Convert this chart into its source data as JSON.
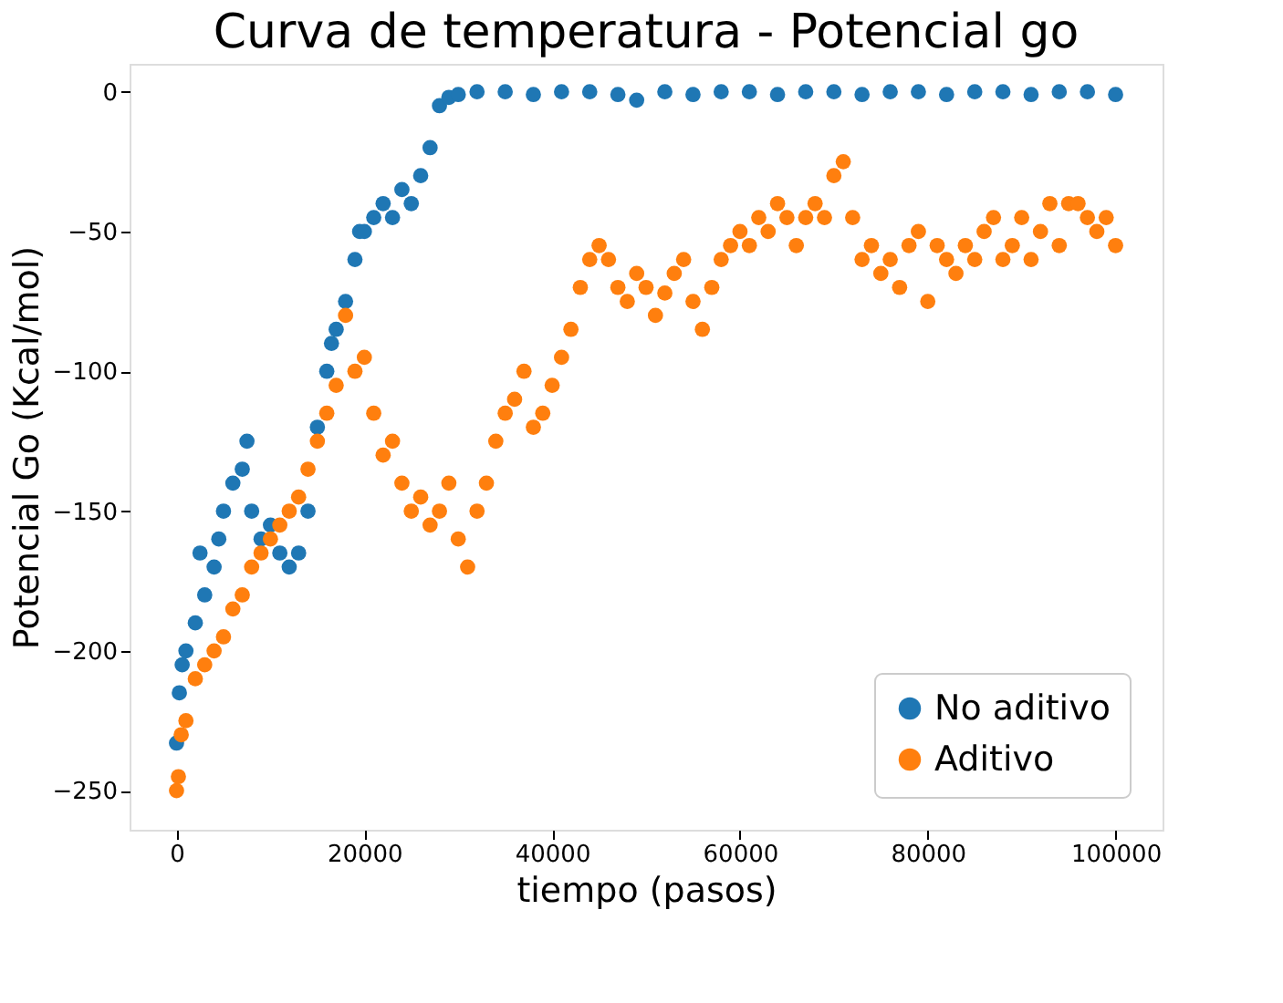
{
  "chart_data": {
    "type": "scatter",
    "title": "Curva de temperatura - Potencial go",
    "xlabel": "tiempo (pasos)",
    "ylabel": "Potencial Go (Kcal/mol)",
    "xlim": [
      -5000,
      105000
    ],
    "ylim": [
      -264,
      10
    ],
    "xticks": [
      0,
      20000,
      40000,
      60000,
      80000,
      100000
    ],
    "yticks": [
      -250,
      -200,
      -150,
      -100,
      -50,
      0
    ],
    "grid": false,
    "legend": "bottom right",
    "marker": "circle",
    "series": [
      {
        "name": "No aditivo",
        "color": "#1f77b4",
        "x": [
          0,
          300,
          600,
          1000,
          2000,
          2500,
          3000,
          4000,
          4500,
          5000,
          6000,
          7000,
          7500,
          8000,
          9000,
          10000,
          11000,
          12000,
          13000,
          14000,
          15000,
          16000,
          16500,
          17000,
          18000,
          19000,
          19500,
          20000,
          21000,
          22000,
          23000,
          24000,
          25000,
          26000,
          27000,
          28000,
          29000,
          30000,
          32000,
          35000,
          38000,
          41000,
          44000,
          47000,
          49000,
          52000,
          55000,
          58000,
          61000,
          64000,
          67000,
          70000,
          73000,
          76000,
          79000,
          82000,
          85000,
          88000,
          91000,
          94000,
          97000,
          100000
        ],
        "values": [
          -233,
          -215,
          -205,
          -200,
          -190,
          -165,
          -180,
          -170,
          -160,
          -150,
          -140,
          -135,
          -125,
          -150,
          -160,
          -155,
          -165,
          -170,
          -165,
          -150,
          -120,
          -100,
          -90,
          -85,
          -75,
          -60,
          -50,
          -50,
          -45,
          -40,
          -45,
          -35,
          -40,
          -30,
          -20,
          -5,
          -2,
          -1,
          0,
          0,
          -1,
          0,
          0,
          -1,
          -3,
          0,
          -1,
          0,
          0,
          -1,
          0,
          0,
          -1,
          0,
          0,
          -1,
          0,
          0,
          -1,
          0,
          0,
          -1
        ]
      },
      {
        "name": "Aditivo",
        "color": "#ff7f0e",
        "x": [
          0,
          200,
          500,
          1000,
          2000,
          3000,
          4000,
          5000,
          6000,
          7000,
          8000,
          9000,
          10000,
          11000,
          12000,
          13000,
          14000,
          15000,
          16000,
          17000,
          18000,
          19000,
          20000,
          21000,
          22000,
          23000,
          24000,
          25000,
          26000,
          27000,
          28000,
          29000,
          30000,
          31000,
          32000,
          33000,
          34000,
          35000,
          36000,
          37000,
          38000,
          39000,
          40000,
          41000,
          42000,
          43000,
          44000,
          45000,
          46000,
          47000,
          48000,
          49000,
          50000,
          51000,
          52000,
          53000,
          54000,
          55000,
          56000,
          57000,
          58000,
          59000,
          60000,
          61000,
          62000,
          63000,
          64000,
          65000,
          66000,
          67000,
          68000,
          69000,
          70000,
          71000,
          72000,
          73000,
          74000,
          75000,
          76000,
          77000,
          78000,
          79000,
          80000,
          81000,
          82000,
          83000,
          84000,
          85000,
          86000,
          87000,
          88000,
          89000,
          90000,
          91000,
          92000,
          93000,
          94000,
          95000,
          96000,
          97000,
          98000,
          99000,
          100000
        ],
        "values": [
          -250,
          -245,
          -230,
          -225,
          -210,
          -205,
          -200,
          -195,
          -185,
          -180,
          -170,
          -165,
          -160,
          -155,
          -150,
          -145,
          -135,
          -125,
          -115,
          -105,
          -80,
          -100,
          -95,
          -115,
          -130,
          -125,
          -140,
          -150,
          -145,
          -155,
          -150,
          -140,
          -160,
          -170,
          -150,
          -140,
          -125,
          -115,
          -110,
          -100,
          -120,
          -115,
          -105,
          -95,
          -85,
          -70,
          -60,
          -55,
          -60,
          -70,
          -75,
          -65,
          -70,
          -80,
          -72,
          -65,
          -60,
          -75,
          -85,
          -70,
          -60,
          -55,
          -50,
          -55,
          -45,
          -50,
          -40,
          -45,
          -55,
          -45,
          -40,
          -45,
          -30,
          -25,
          -45,
          -60,
          -55,
          -65,
          -60,
          -70,
          -55,
          -50,
          -75,
          -55,
          -60,
          -65,
          -55,
          -60,
          -50,
          -45,
          -60,
          -55,
          -45,
          -60,
          -50,
          -40,
          -55,
          -40,
          -40,
          -45,
          -50,
          -45,
          -55
        ]
      }
    ]
  }
}
